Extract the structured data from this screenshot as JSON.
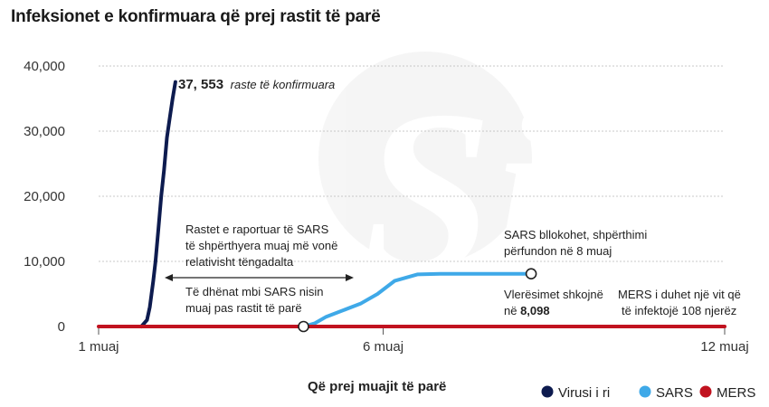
{
  "title": "Infeksionet e konfirmuara që prej rastit të parë",
  "watermark": "Si",
  "chart_data": {
    "type": "line",
    "xlabel": "Që prej muajit të parë",
    "ylabel": "",
    "xlim": [
      1,
      12
    ],
    "ylim": [
      0,
      40000
    ],
    "grid": "horizontal",
    "legend_position": "bottom-right",
    "x_ticks": [
      {
        "value": 1,
        "label": "1 muaj"
      },
      {
        "value": 6,
        "label": "6 muaj"
      },
      {
        "value": 12,
        "label": "12 muaj"
      }
    ],
    "y_ticks": [
      {
        "value": 0,
        "label": "0"
      },
      {
        "value": 10000,
        "label": "10,000"
      },
      {
        "value": 20000,
        "label": "20,000"
      },
      {
        "value": 30000,
        "label": "30,000"
      },
      {
        "value": 40000,
        "label": "40,000"
      }
    ],
    "series": [
      {
        "name": "Virusi i ri",
        "color": "#0d1b4f",
        "x": [
          1.75,
          1.85,
          1.9,
          1.93,
          1.96,
          2.0,
          2.05,
          2.1,
          2.15,
          2.2,
          2.25,
          2.3,
          2.35
        ],
        "y": [
          0,
          1000,
          3000,
          5000,
          7000,
          10000,
          15000,
          20000,
          24000,
          29000,
          32000,
          35000,
          37553
        ]
      },
      {
        "name": "SARS",
        "color": "#3fa9e8",
        "x": [
          4.6,
          4.8,
          5.0,
          5.3,
          5.6,
          5.9,
          6.2,
          6.6,
          7.0,
          7.5,
          8.0,
          8.6
        ],
        "y": [
          0,
          500,
          1500,
          2500,
          3500,
          5000,
          7000,
          8000,
          8098,
          8098,
          8098,
          8098
        ]
      },
      {
        "name": "MERS",
        "color": "#c1121f",
        "x": [
          1,
          12
        ],
        "y": [
          0,
          0
        ]
      }
    ],
    "annotations": {
      "new_virus_value": "37, 553",
      "new_virus_text": "raste të konfirmuara",
      "sars_reported_1": "Rastet e raportuar të SARS",
      "sars_reported_2": "të shpërthyera muaj më vonë",
      "sars_reported_3": "relativisht tëngadalta",
      "sars_data_1": "Të dhënat mbi SARS nisin",
      "sars_data_2": "muaj pas rastit të parë",
      "sars_blocked_1": "SARS bllokohet, shpërthimi",
      "sars_blocked_2": "përfundon në 8 muaj",
      "estimate_1": "Vlerësimet shkojnë",
      "estimate_2_prefix": "në ",
      "estimate_2_value": "8,098",
      "mers_1": "MERS i duhet një vit që",
      "mers_2": "të infektojë 108 njerëz"
    }
  }
}
